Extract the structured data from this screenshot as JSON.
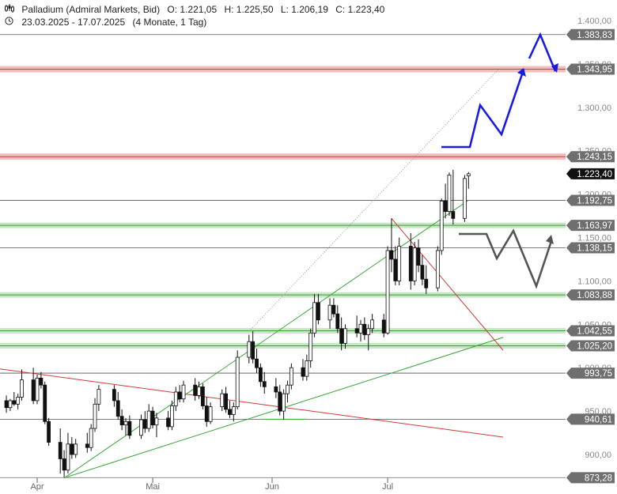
{
  "header": {
    "instrument": "Palladium (Admiral Markets, Bid)",
    "open": "O: 1.221,05",
    "high": "H: 1.225,50",
    "low": "L: 1.206,19",
    "close": "C: 1.223,40",
    "range": "23.03.2025 - 17.07.2025",
    "period": "(4 Monate, 1 Tag)"
  },
  "colors": {
    "candle_up": "#ffffff",
    "candle_down": "#111111",
    "resistance_zone": "#e8a3a3",
    "support_zone": "#b5dfb0",
    "uptrend": "#3aa63a",
    "downtrend": "#d23a3a",
    "projection_bull": "#1a1ae6",
    "projection_alt": "#555555",
    "label_bg": "#6f6f6f",
    "current_price_bg": "#111111"
  },
  "chart_data": {
    "type": "candlestick",
    "y_axis": {
      "min": 865,
      "max": 1410,
      "ticks": [
        "1.400,00",
        "1.350,00",
        "1.300,00",
        "1.250,00",
        "1.200,00",
        "1.150,00",
        "1.100,00",
        "1.050,00",
        "1.000,00",
        "950,00",
        "900,00"
      ],
      "tick_values": [
        1400,
        1350,
        1300,
        1250,
        1200,
        1150,
        1100,
        1050,
        1000,
        950,
        900
      ]
    },
    "x_axis": {
      "labels": [
        "Apr",
        "Mai",
        "Jun",
        "Jul"
      ],
      "label_dates": [
        "2025-04-01",
        "2025-05-01",
        "2025-06-01",
        "2025-07-01"
      ],
      "start": "2025-03-23",
      "end": "2025-07-17"
    },
    "levels": [
      {
        "value": 1383.83,
        "label": "1.383,83",
        "kind": "line"
      },
      {
        "value": 1343.95,
        "label": "1.343,95",
        "kind": "resistance"
      },
      {
        "value": 1243.15,
        "label": "1.243,15",
        "kind": "resistance"
      },
      {
        "value": 1192.75,
        "label": "1.192,75",
        "kind": "line"
      },
      {
        "value": 1163.97,
        "label": "1.163,97",
        "kind": "support"
      },
      {
        "value": 1138.15,
        "label": "1.138,15",
        "kind": "line"
      },
      {
        "value": 1083.88,
        "label": "1.083,88",
        "kind": "support"
      },
      {
        "value": 1042.55,
        "label": "1.042,55",
        "kind": "support"
      },
      {
        "value": 1025.2,
        "label": "1.025,20",
        "kind": "support"
      },
      {
        "value": 993.75,
        "label": "993,75",
        "kind": "line"
      },
      {
        "value": 940.61,
        "label": "940,61",
        "kind": "line"
      },
      {
        "value": 873.28,
        "label": "873,28",
        "kind": "line"
      }
    ],
    "current_price": {
      "value": 1223.4,
      "label": "1.223,40"
    },
    "candles": [
      {
        "date": "2025-03-24",
        "o": 962,
        "h": 968,
        "l": 948,
        "c": 954
      },
      {
        "date": "2025-03-25",
        "o": 954,
        "h": 964,
        "l": 950,
        "c": 962
      },
      {
        "date": "2025-03-26",
        "o": 962,
        "h": 972,
        "l": 956,
        "c": 958
      },
      {
        "date": "2025-03-27",
        "o": 958,
        "h": 970,
        "l": 952,
        "c": 966
      },
      {
        "date": "2025-03-28",
        "o": 966,
        "h": 998,
        "l": 962,
        "c": 986
      },
      {
        "date": "2025-03-31",
        "o": 986,
        "h": 1000,
        "l": 958,
        "c": 962
      },
      {
        "date": "2025-04-01",
        "o": 962,
        "h": 992,
        "l": 958,
        "c": 988
      },
      {
        "date": "2025-04-02",
        "o": 988,
        "h": 995,
        "l": 976,
        "c": 980
      },
      {
        "date": "2025-04-03",
        "o": 980,
        "h": 984,
        "l": 935,
        "c": 938
      },
      {
        "date": "2025-04-04",
        "o": 938,
        "h": 942,
        "l": 910,
        "c": 914
      },
      {
        "date": "2025-04-07",
        "o": 914,
        "h": 930,
        "l": 878,
        "c": 895
      },
      {
        "date": "2025-04-08",
        "o": 895,
        "h": 905,
        "l": 873,
        "c": 882
      },
      {
        "date": "2025-04-09",
        "o": 882,
        "h": 925,
        "l": 878,
        "c": 912
      },
      {
        "date": "2025-04-10",
        "o": 912,
        "h": 920,
        "l": 895,
        "c": 900
      },
      {
        "date": "2025-04-11",
        "o": 900,
        "h": 918,
        "l": 896,
        "c": 912
      },
      {
        "date": "2025-04-14",
        "o": 912,
        "h": 925,
        "l": 902,
        "c": 908
      },
      {
        "date": "2025-04-15",
        "o": 908,
        "h": 935,
        "l": 904,
        "c": 930
      },
      {
        "date": "2025-04-16",
        "o": 930,
        "h": 965,
        "l": 926,
        "c": 958
      },
      {
        "date": "2025-04-17",
        "o": 958,
        "h": 980,
        "l": 950,
        "c": 975
      },
      {
        "date": "2025-04-21",
        "o": 975,
        "h": 980,
        "l": 955,
        "c": 962
      },
      {
        "date": "2025-04-22",
        "o": 962,
        "h": 972,
        "l": 940,
        "c": 944
      },
      {
        "date": "2025-04-23",
        "o": 944,
        "h": 952,
        "l": 928,
        "c": 934
      },
      {
        "date": "2025-04-24",
        "o": 934,
        "h": 942,
        "l": 922,
        "c": 938
      },
      {
        "date": "2025-04-25",
        "o": 938,
        "h": 945,
        "l": 918,
        "c": 922
      },
      {
        "date": "2025-04-28",
        "o": 922,
        "h": 946,
        "l": 918,
        "c": 940
      },
      {
        "date": "2025-04-29",
        "o": 940,
        "h": 950,
        "l": 925,
        "c": 930
      },
      {
        "date": "2025-04-30",
        "o": 930,
        "h": 958,
        "l": 926,
        "c": 950
      },
      {
        "date": "2025-05-01",
        "o": 950,
        "h": 955,
        "l": 930,
        "c": 934
      },
      {
        "date": "2025-05-02",
        "o": 934,
        "h": 948,
        "l": 920,
        "c": 942
      },
      {
        "date": "2025-05-05",
        "o": 942,
        "h": 950,
        "l": 928,
        "c": 932
      },
      {
        "date": "2025-05-06",
        "o": 932,
        "h": 962,
        "l": 928,
        "c": 956
      },
      {
        "date": "2025-05-07",
        "o": 956,
        "h": 978,
        "l": 950,
        "c": 972
      },
      {
        "date": "2025-05-08",
        "o": 972,
        "h": 980,
        "l": 960,
        "c": 964
      },
      {
        "date": "2025-05-09",
        "o": 964,
        "h": 985,
        "l": 960,
        "c": 980
      },
      {
        "date": "2025-05-12",
        "o": 980,
        "h": 988,
        "l": 962,
        "c": 968
      },
      {
        "date": "2025-05-13",
        "o": 968,
        "h": 984,
        "l": 964,
        "c": 978
      },
      {
        "date": "2025-05-14",
        "o": 978,
        "h": 982,
        "l": 952,
        "c": 956
      },
      {
        "date": "2025-05-15",
        "o": 956,
        "h": 966,
        "l": 932,
        "c": 938
      },
      {
        "date": "2025-05-16",
        "o": 938,
        "h": 960,
        "l": 935,
        "c": 955
      },
      {
        "date": "2025-05-19",
        "o": 955,
        "h": 975,
        "l": 950,
        "c": 970
      },
      {
        "date": "2025-05-20",
        "o": 970,
        "h": 978,
        "l": 948,
        "c": 952
      },
      {
        "date": "2025-05-21",
        "o": 952,
        "h": 962,
        "l": 942,
        "c": 946
      },
      {
        "date": "2025-05-22",
        "o": 946,
        "h": 960,
        "l": 938,
        "c": 955
      },
      {
        "date": "2025-05-23",
        "o": 955,
        "h": 1020,
        "l": 952,
        "c": 1012
      },
      {
        "date": "2025-05-26",
        "o": 1012,
        "h": 1038,
        "l": 1005,
        "c": 1030
      },
      {
        "date": "2025-05-27",
        "o": 1030,
        "h": 1042,
        "l": 1005,
        "c": 1010
      },
      {
        "date": "2025-05-28",
        "o": 1010,
        "h": 1022,
        "l": 994,
        "c": 1000
      },
      {
        "date": "2025-05-29",
        "o": 1000,
        "h": 1005,
        "l": 978,
        "c": 984
      },
      {
        "date": "2025-05-30",
        "o": 984,
        "h": 995,
        "l": 970,
        "c": 978
      },
      {
        "date": "2025-06-02",
        "o": 978,
        "h": 988,
        "l": 965,
        "c": 972
      },
      {
        "date": "2025-06-03",
        "o": 972,
        "h": 980,
        "l": 945,
        "c": 950
      },
      {
        "date": "2025-06-04",
        "o": 950,
        "h": 975,
        "l": 940,
        "c": 970
      },
      {
        "date": "2025-06-05",
        "o": 970,
        "h": 985,
        "l": 960,
        "c": 980
      },
      {
        "date": "2025-06-06",
        "o": 980,
        "h": 1005,
        "l": 975,
        "c": 1000
      },
      {
        "date": "2025-06-09",
        "o": 1000,
        "h": 1010,
        "l": 985,
        "c": 990
      },
      {
        "date": "2025-06-10",
        "o": 990,
        "h": 1015,
        "l": 985,
        "c": 1008
      },
      {
        "date": "2025-06-11",
        "o": 1008,
        "h": 1045,
        "l": 1000,
        "c": 1040
      },
      {
        "date": "2025-06-12",
        "o": 1040,
        "h": 1085,
        "l": 1035,
        "c": 1075
      },
      {
        "date": "2025-06-13",
        "o": 1075,
        "h": 1085,
        "l": 1050,
        "c": 1055
      },
      {
        "date": "2025-06-16",
        "o": 1055,
        "h": 1080,
        "l": 1045,
        "c": 1072
      },
      {
        "date": "2025-06-17",
        "o": 1072,
        "h": 1080,
        "l": 1058,
        "c": 1062
      },
      {
        "date": "2025-06-18",
        "o": 1062,
        "h": 1072,
        "l": 1040,
        "c": 1045
      },
      {
        "date": "2025-06-19",
        "o": 1045,
        "h": 1058,
        "l": 1020,
        "c": 1028
      },
      {
        "date": "2025-06-20",
        "o": 1028,
        "h": 1050,
        "l": 1022,
        "c": 1045
      },
      {
        "date": "2025-06-23",
        "o": 1045,
        "h": 1060,
        "l": 1035,
        "c": 1040
      },
      {
        "date": "2025-06-24",
        "o": 1040,
        "h": 1055,
        "l": 1030,
        "c": 1050
      },
      {
        "date": "2025-06-25",
        "o": 1050,
        "h": 1058,
        "l": 1032,
        "c": 1038
      },
      {
        "date": "2025-06-26",
        "o": 1038,
        "h": 1050,
        "l": 1020,
        "c": 1045
      },
      {
        "date": "2025-06-27",
        "o": 1045,
        "h": 1062,
        "l": 1040,
        "c": 1055
      },
      {
        "date": "2025-06-30",
        "o": 1055,
        "h": 1062,
        "l": 1035,
        "c": 1040
      },
      {
        "date": "2025-07-01",
        "o": 1040,
        "h": 1140,
        "l": 1038,
        "c": 1135
      },
      {
        "date": "2025-07-02",
        "o": 1135,
        "h": 1172,
        "l": 1110,
        "c": 1125
      },
      {
        "date": "2025-07-03",
        "o": 1125,
        "h": 1140,
        "l": 1095,
        "c": 1100
      },
      {
        "date": "2025-07-04",
        "o": 1100,
        "h": 1150,
        "l": 1095,
        "c": 1140
      },
      {
        "date": "2025-07-07",
        "o": 1140,
        "h": 1155,
        "l": 1090,
        "c": 1100
      },
      {
        "date": "2025-07-08",
        "o": 1100,
        "h": 1145,
        "l": 1095,
        "c": 1138
      },
      {
        "date": "2025-07-09",
        "o": 1138,
        "h": 1148,
        "l": 1110,
        "c": 1118
      },
      {
        "date": "2025-07-10",
        "o": 1118,
        "h": 1130,
        "l": 1095,
        "c": 1102
      },
      {
        "date": "2025-07-11",
        "o": 1102,
        "h": 1118,
        "l": 1085,
        "c": 1092
      },
      {
        "date": "2025-07-14",
        "o": 1092,
        "h": 1140,
        "l": 1088,
        "c": 1135
      },
      {
        "date": "2025-07-15",
        "o": 1135,
        "h": 1195,
        "l": 1130,
        "c": 1192
      },
      {
        "date": "2025-07-16",
        "o": 1192,
        "h": 1212,
        "l": 1172,
        "c": 1180
      },
      {
        "date": "2025-07-17",
        "o": 1180,
        "h": 1225,
        "l": 1175,
        "c": 1222
      }
    ],
    "extra_candles": [
      {
        "date": "2025-07-18",
        "o": 1180,
        "h": 1228,
        "l": 1165,
        "c": 1172
      },
      {
        "date": "2025-07-21",
        "o": 1172,
        "h": 1222,
        "l": 1168,
        "c": 1218
      },
      {
        "date": "2025-07-22",
        "o": 1221.05,
        "h": 1225.5,
        "l": 1206.19,
        "c": 1223.4
      }
    ],
    "trendlines": [
      {
        "name": "uptrend-1",
        "color": "uptrend",
        "points": [
          [
            "2025-04-08",
            873
          ],
          [
            "2025-07-22",
            1193
          ]
        ]
      },
      {
        "name": "uptrend-2",
        "color": "uptrend",
        "points": [
          [
            "2025-04-08",
            873
          ],
          [
            "2025-07-31",
            1035
          ]
        ]
      },
      {
        "name": "uptrend-3",
        "color": "uptrend",
        "points": [
          [
            "2025-05-29",
            940.61
          ],
          [
            "2025-06-10",
            940.61
          ]
        ]
      },
      {
        "name": "downtrend-1",
        "color": "downtrend",
        "points": [
          [
            "2025-03-20",
            1000
          ],
          [
            "2025-07-31",
            920
          ]
        ]
      },
      {
        "name": "downtrend-2",
        "color": "downtrend",
        "points": [
          [
            "2025-07-02",
            1172
          ],
          [
            "2025-07-31",
            1020
          ]
        ]
      },
      {
        "name": "dotted-channel",
        "color": "projection_alt",
        "points": [
          [
            "2025-05-26",
            1042
          ],
          [
            "2025-07-30",
            1345
          ]
        ]
      }
    ]
  }
}
